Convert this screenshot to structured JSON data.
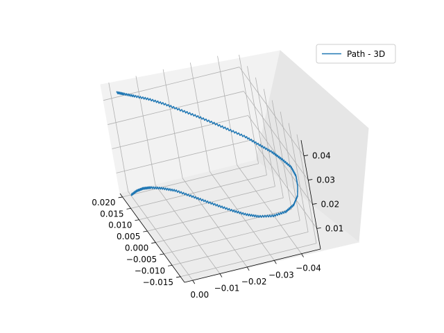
{
  "chart_data": {
    "type": "line",
    "projection": "3d",
    "title": "",
    "grid": true,
    "legend": {
      "location": "upper-right",
      "entries": [
        "Path - 3D"
      ]
    },
    "series": [
      {
        "name": "Path - 3D",
        "color": "#1f77b4",
        "points": [
          [
            0.0,
            0.0195,
            0.002
          ],
          [
            -0.002,
            0.019,
            0.0036
          ],
          [
            -0.004,
            0.018,
            0.005
          ],
          [
            -0.006,
            0.0165,
            0.0062
          ],
          [
            -0.009,
            0.014,
            0.0074
          ],
          [
            -0.012,
            0.011,
            0.0085
          ],
          [
            -0.015,
            0.007,
            0.0094
          ],
          [
            -0.018,
            0.003,
            0.0102
          ],
          [
            -0.021,
            -0.001,
            0.011
          ],
          [
            -0.024,
            -0.005,
            0.0119
          ],
          [
            -0.027,
            -0.0085,
            0.0128
          ],
          [
            -0.03,
            -0.0115,
            0.014
          ],
          [
            -0.034,
            -0.014,
            0.0155
          ],
          [
            -0.038,
            -0.0155,
            0.0175
          ],
          [
            -0.041,
            -0.016,
            0.02
          ],
          [
            -0.043,
            -0.0158,
            0.023
          ],
          [
            -0.044,
            -0.015,
            0.026
          ],
          [
            -0.0445,
            -0.014,
            0.029
          ],
          [
            -0.044,
            -0.0125,
            0.0315
          ],
          [
            -0.042,
            -0.0105,
            0.0335
          ],
          [
            -0.04,
            -0.0085,
            0.035
          ],
          [
            -0.037,
            -0.006,
            0.0365
          ],
          [
            -0.034,
            -0.003,
            0.0378
          ],
          [
            -0.03,
            0.0,
            0.039
          ],
          [
            -0.026,
            0.003,
            0.0402
          ],
          [
            -0.022,
            0.006,
            0.0412
          ],
          [
            -0.018,
            0.009,
            0.042
          ],
          [
            -0.014,
            0.012,
            0.0428
          ],
          [
            -0.01,
            0.0145,
            0.0435
          ],
          [
            -0.006,
            0.0165,
            0.044
          ],
          [
            -0.003,
            0.018,
            0.0443
          ],
          [
            -0.001,
            0.019,
            0.0445
          ]
        ]
      }
    ],
    "axes": {
      "x": {
        "ticks": [
          0.0,
          -0.01,
          -0.02,
          -0.03,
          -0.04
        ],
        "tick_labels": [
          "0.00",
          "−0.01",
          "−0.02",
          "−0.03",
          "−0.04"
        ],
        "range": [
          0.003,
          -0.047
        ]
      },
      "y": {
        "ticks": [
          0.02,
          0.015,
          0.01,
          0.005,
          0.0,
          -0.005,
          -0.01,
          -0.015
        ],
        "tick_labels": [
          "0.020",
          "0.015",
          "0.010",
          "0.005",
          "0.000",
          "−0.005",
          "−0.010",
          "−0.015"
        ],
        "range": [
          0.0215,
          -0.0175
        ]
      },
      "z": {
        "ticks": [
          0.01,
          0.02,
          0.03,
          0.04
        ],
        "tick_labels": [
          "0.01",
          "0.02",
          "0.03",
          "0.04"
        ],
        "range": [
          0.0015,
          0.0465
        ]
      }
    }
  }
}
